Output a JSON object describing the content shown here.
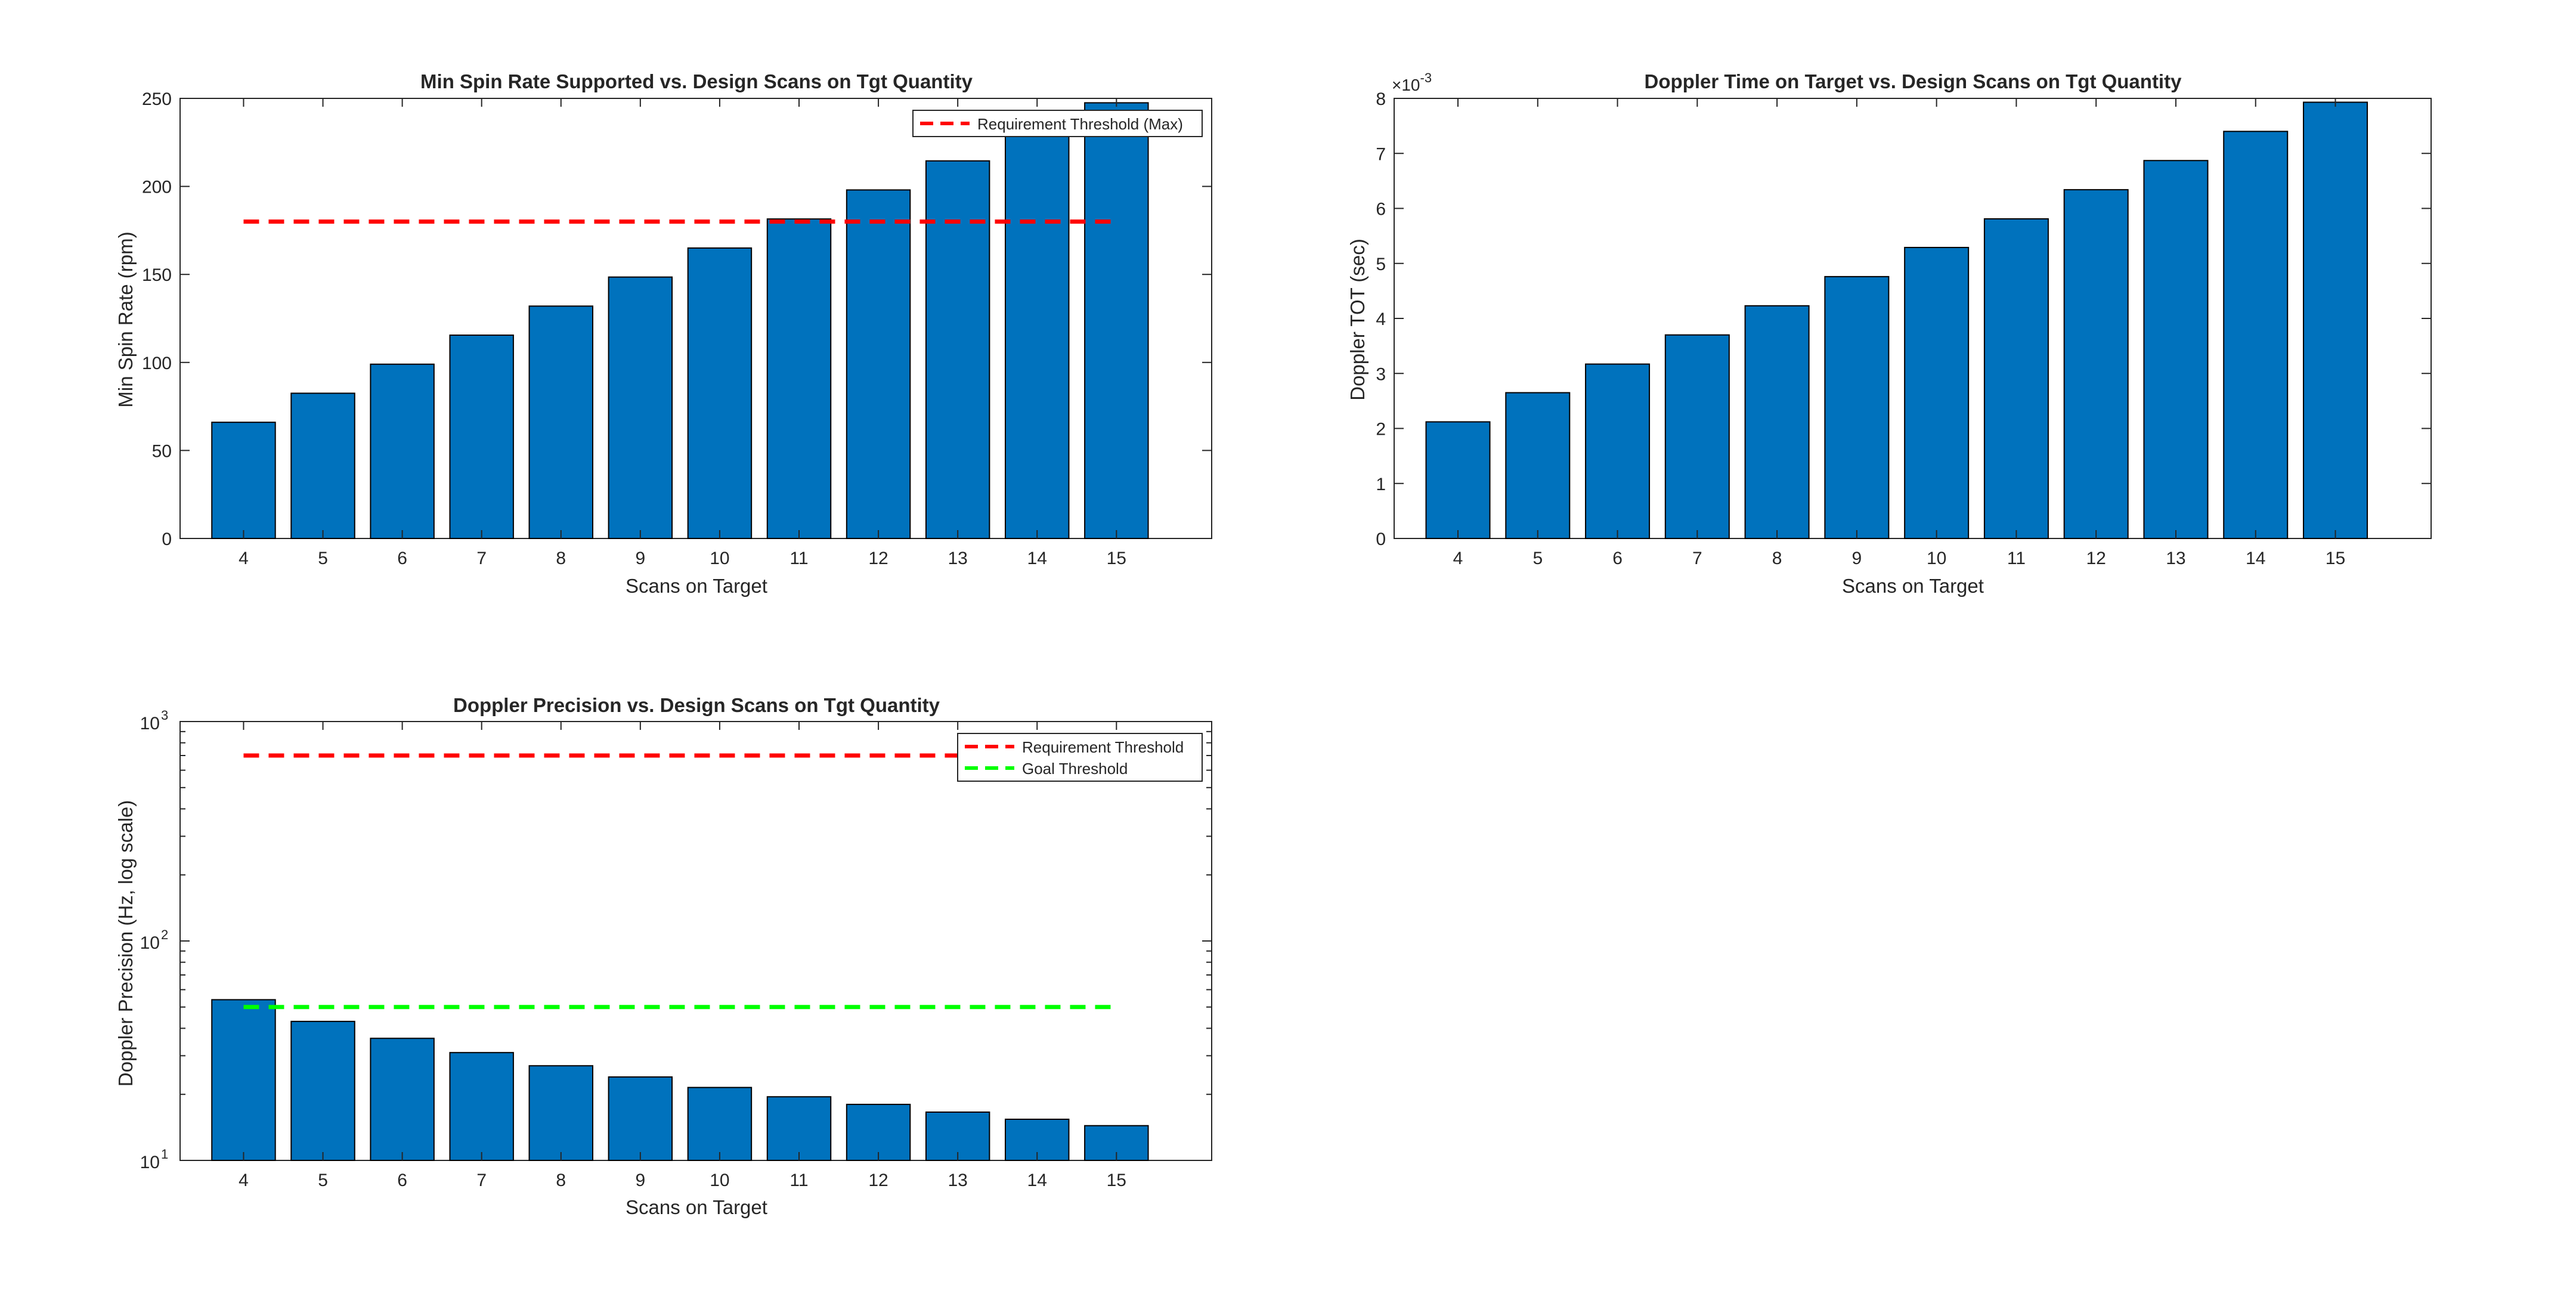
{
  "figure": {
    "charts": [
      {
        "id": "spin",
        "type": "bar",
        "title": "Min Spin Rate Supported vs. Design Scans on Tgt Quantity",
        "xlabel": "Scans on Target",
        "ylabel": "Min Spin Rate (rpm)",
        "ylim": [
          0,
          250
        ],
        "yticks": [
          "0",
          "50",
          "100",
          "150",
          "200",
          "250"
        ],
        "scale": "linear",
        "multiplier": "",
        "grid": false,
        "legend_position": "top-right"
      },
      {
        "id": "tot",
        "type": "bar",
        "title": "Doppler Time on Target vs. Design Scans on Tgt Quantity",
        "xlabel": "Scans on Target",
        "ylabel": "Doppler TOT (sec)",
        "ylim": [
          0,
          8
        ],
        "yticks": [
          "0",
          "1",
          "2",
          "3",
          "4",
          "5",
          "6",
          "7",
          "8"
        ],
        "scale": "linear",
        "multiplier": "×10",
        "multiplier_exp": "-3",
        "grid": false,
        "legend_position": ""
      },
      {
        "id": "prec",
        "type": "bar",
        "title": "Doppler Precision vs. Design Scans on Tgt Quantity",
        "xlabel": "Scans on Target",
        "ylabel": "Doppler Precision (Hz, log scale)",
        "ylim": [
          10,
          1000
        ],
        "yticks_base": [
          "10",
          "10",
          "10"
        ],
        "yticks_exp": [
          "1",
          "2",
          "3"
        ],
        "scale": "log",
        "multiplier": "",
        "grid": false,
        "legend_position": "top-right"
      }
    ]
  },
  "chart_data": [
    {
      "type": "bar",
      "title": "Min Spin Rate Supported vs. Design Scans on Tgt Quantity",
      "xlabel": "Scans on Target",
      "ylabel": "Min Spin Rate (rpm)",
      "categories": [
        "4",
        "5",
        "6",
        "7",
        "8",
        "9",
        "10",
        "11",
        "12",
        "13",
        "14",
        "15"
      ],
      "values": [
        66,
        82.5,
        99,
        115.5,
        132,
        148.5,
        165,
        181.5,
        198,
        214.5,
        231,
        247.5
      ],
      "ylim": [
        0,
        250
      ],
      "bar_color": "#0072BD",
      "reference_lines": [
        {
          "name": "Requirement Threshold (Max)",
          "value": 180,
          "color": "#FF0000",
          "style": "dashed"
        }
      ]
    },
    {
      "type": "bar",
      "title": "Doppler Time on Target vs. Design Scans on Tgt Quantity",
      "xlabel": "Scans on Target",
      "ylabel": "Doppler TOT (sec)",
      "categories": [
        "4",
        "5",
        "6",
        "7",
        "8",
        "9",
        "10",
        "11",
        "12",
        "13",
        "14",
        "15"
      ],
      "values": [
        0.00212,
        0.00265,
        0.00317,
        0.0037,
        0.00423,
        0.00476,
        0.00529,
        0.00581,
        0.00634,
        0.00687,
        0.0074,
        0.00793
      ],
      "ylim": [
        0,
        0.008
      ],
      "bar_color": "#0072BD",
      "reference_lines": []
    },
    {
      "type": "bar",
      "title": "Doppler Precision vs. Design Scans on Tgt Quantity",
      "xlabel": "Scans on Target",
      "ylabel": "Doppler Precision (Hz, log scale)",
      "categories": [
        "4",
        "5",
        "6",
        "7",
        "8",
        "9",
        "10",
        "11",
        "12",
        "13",
        "14",
        "15"
      ],
      "values": [
        54,
        43,
        36,
        31,
        27,
        24,
        21.5,
        19.5,
        18,
        16.6,
        15.4,
        14.4
      ],
      "ylim": [
        10,
        1000
      ],
      "yscale": "log",
      "bar_color": "#0072BD",
      "reference_lines": [
        {
          "name": "Requirement Threshold",
          "value": 700,
          "color": "#FF0000",
          "style": "dashed"
        },
        {
          "name": "Goal Threshold",
          "value": 50,
          "color": "#00FF00",
          "style": "dashed"
        }
      ]
    }
  ]
}
